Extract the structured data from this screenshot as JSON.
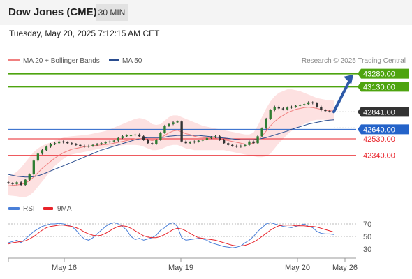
{
  "header": {
    "title": "Dow Jones (CME)",
    "timeframe": "30 MIN"
  },
  "timestamp": "Tuesday, May 20, 2025 7:12:15 AM CET",
  "colors": {
    "green": "#4ea40f",
    "red": "#e8232a",
    "blue": "#2463c9",
    "dark": "#333333",
    "ma20": "#f08080",
    "ma50": "#2a4d8f",
    "candle": "#2e7d32",
    "band": "#fde1e1"
  },
  "chart_data": [
    {
      "type": "candlestick",
      "legend": [
        {
          "label": "MA 20 + Bollinger Bands",
          "color": "#f08080"
        },
        {
          "label": "MA 50",
          "color": "#2a4d8f"
        }
      ],
      "credit": "Research © 2025 Trading Central",
      "x_ticks": [
        "May 16",
        "May 19",
        "May 20",
        "May 26"
      ],
      "ylim": [
        41880,
        43470
      ],
      "levels": [
        {
          "value": 43280,
          "label": "43280.00",
          "kind": "resistance",
          "boxed": true
        },
        {
          "value": 43130,
          "label": "43130.00",
          "kind": "resistance",
          "boxed": true
        },
        {
          "value": 42841,
          "label": "42841.00",
          "kind": "last",
          "boxed": true
        },
        {
          "value": 42640,
          "label": "42640.00",
          "kind": "pivot",
          "boxed": true
        },
        {
          "value": 42530,
          "label": "42530.00",
          "kind": "support",
          "boxed": false
        },
        {
          "value": 42340,
          "label": "42340.00",
          "kind": "support",
          "boxed": false
        }
      ],
      "projection": {
        "from": 42841,
        "to": 43270
      },
      "closes": [
        42020,
        42010,
        42030,
        42000,
        42060,
        42120,
        42280,
        42360,
        42400,
        42440,
        42470,
        42480,
        42500,
        42490,
        42480,
        42470,
        42460,
        42450,
        42440,
        42450,
        42460,
        42470,
        42480,
        42490,
        42500,
        42510,
        42540,
        42560,
        42570,
        42570,
        42580,
        42560,
        42520,
        42480,
        42470,
        42520,
        42600,
        42680,
        42700,
        42720,
        42730,
        42500,
        42480,
        42490,
        42500,
        42510,
        42520,
        42540,
        42550,
        42560,
        42520,
        42480,
        42460,
        42450,
        42440,
        42450,
        42460,
        42500,
        42480,
        42560,
        42650,
        42760,
        42860,
        42900,
        42880,
        42870,
        42890,
        42900,
        42910,
        42920,
        42930,
        42950,
        42940,
        42900,
        42860,
        42850,
        42845,
        42841
      ],
      "ma20": [
        41990,
        41995,
        42000,
        42005,
        42020,
        42050,
        42090,
        42140,
        42190,
        42230,
        42270,
        42310,
        42340,
        42370,
        42390,
        42410,
        42420,
        42430,
        42440,
        42445,
        42450,
        42455,
        42460,
        42465,
        42470,
        42480,
        42490,
        42500,
        42510,
        42520,
        42530,
        42535,
        42530,
        42520,
        42510,
        42520,
        42540,
        42570,
        42600,
        42620,
        42630,
        42610,
        42590,
        42580,
        42560,
        42550,
        42545,
        42540,
        42540,
        42540,
        42530,
        42520,
        42510,
        42500,
        42490,
        42480,
        42470,
        42470,
        42480,
        42510,
        42560,
        42620,
        42680,
        42730,
        42770,
        42800,
        42830,
        42850,
        42870,
        42880,
        42890,
        42895,
        42890,
        42880,
        42870,
        42860,
        42855,
        42850
      ],
      "ma50": [
        42120,
        42110,
        42100,
        42095,
        42090,
        42090,
        42095,
        42105,
        42120,
        42140,
        42160,
        42180,
        42200,
        42220,
        42240,
        42260,
        42280,
        42300,
        42320,
        42340,
        42360,
        42380,
        42400,
        42415,
        42430,
        42445,
        42460,
        42475,
        42490,
        42505,
        42520,
        42530,
        42540,
        42545,
        42545,
        42545,
        42545,
        42550,
        42560,
        42565,
        42570,
        42570,
        42570,
        42570,
        42570,
        42570,
        42565,
        42560,
        42555,
        42550,
        42545,
        42540,
        42535,
        42530,
        42525,
        42520,
        42520,
        42520,
        42520,
        42525,
        42535,
        42545,
        42560,
        42575,
        42590,
        42605,
        42620,
        42640,
        42655,
        42670,
        42685,
        42700,
        42710,
        42720,
        42730,
        42740,
        42745,
        42750
      ],
      "band_upper": [
        42100,
        42120,
        42150,
        42200,
        42260,
        42320,
        42380,
        42420,
        42450,
        42470,
        42490,
        42510,
        42530,
        42545,
        42555,
        42560,
        42565,
        42570,
        42575,
        42580,
        42590,
        42600,
        42610,
        42620,
        42640,
        42660,
        42680,
        42700,
        42720,
        42740,
        42760,
        42770,
        42760,
        42740,
        42700,
        42690,
        42700,
        42740,
        42780,
        42800,
        42800,
        42780,
        42760,
        42740,
        42720,
        42700,
        42680,
        42670,
        42660,
        42650,
        42640,
        42630,
        42620,
        42610,
        42600,
        42590,
        42580,
        42580,
        42600,
        42680,
        42780,
        42880,
        42960,
        43020,
        43060,
        43080,
        43100,
        43100,
        43090,
        43080,
        43060,
        43040,
        43020,
        43000,
        42990,
        42980,
        42975,
        42970
      ],
      "band_lower": [
        41880,
        41875,
        41870,
        41860,
        41860,
        41880,
        41920,
        41980,
        42040,
        42100,
        42160,
        42220,
        42260,
        42300,
        42330,
        42350,
        42360,
        42370,
        42380,
        42390,
        42400,
        42410,
        42420,
        42430,
        42440,
        42445,
        42450,
        42455,
        42460,
        42460,
        42460,
        42455,
        42440,
        42420,
        42400,
        42400,
        42410,
        42430,
        42450,
        42460,
        42460,
        42440,
        42420,
        42410,
        42400,
        42400,
        42400,
        42400,
        42400,
        42400,
        42400,
        42400,
        42390,
        42380,
        42370,
        42360,
        42350,
        42340,
        42330,
        42320,
        42320,
        42330,
        42360,
        42420,
        42480,
        42530,
        42580,
        42620,
        42650,
        42680,
        42700,
        42720,
        42740,
        42750,
        42750,
        42750,
        42745,
        42740
      ]
    },
    {
      "type": "line",
      "legend": [
        {
          "label": "RSI",
          "color": "#4a7fd8"
        },
        {
          "label": "9MA",
          "color": "#e8232a"
        }
      ],
      "yticks": [
        70,
        50,
        30
      ],
      "ylim": [
        20,
        80
      ],
      "rsi": [
        40,
        42,
        44,
        40,
        46,
        52,
        58,
        62,
        66,
        68,
        70,
        70,
        71,
        70,
        68,
        66,
        60,
        52,
        46,
        44,
        48,
        54,
        60,
        66,
        70,
        72,
        70,
        66,
        60,
        50,
        45,
        47,
        44,
        46,
        48,
        52,
        60,
        64,
        70,
        72,
        66,
        48,
        44,
        45,
        46,
        47,
        46,
        44,
        40,
        38,
        36,
        34,
        33,
        32,
        33,
        35,
        40,
        44,
        50,
        58,
        64,
        70,
        72,
        70,
        68,
        66,
        65,
        64,
        66,
        68,
        70,
        66,
        64,
        58,
        55,
        54,
        54,
        53
      ],
      "ma9": [
        38,
        40,
        41,
        42,
        43,
        46,
        50,
        55,
        60,
        64,
        66,
        67,
        68,
        68,
        67,
        66,
        64,
        61,
        57,
        54,
        52,
        51,
        52,
        55,
        59,
        63,
        66,
        67,
        66,
        63,
        59,
        55,
        51,
        49,
        48,
        48,
        50,
        53,
        57,
        61,
        63,
        62,
        59,
        55,
        51,
        48,
        47,
        46,
        45,
        44,
        42,
        40,
        38,
        36,
        35,
        35,
        36,
        38,
        41,
        45,
        50,
        55,
        60,
        64,
        67,
        68,
        68,
        68,
        67,
        67,
        67,
        66,
        66,
        65,
        63,
        61,
        59,
        57
      ]
    }
  ]
}
